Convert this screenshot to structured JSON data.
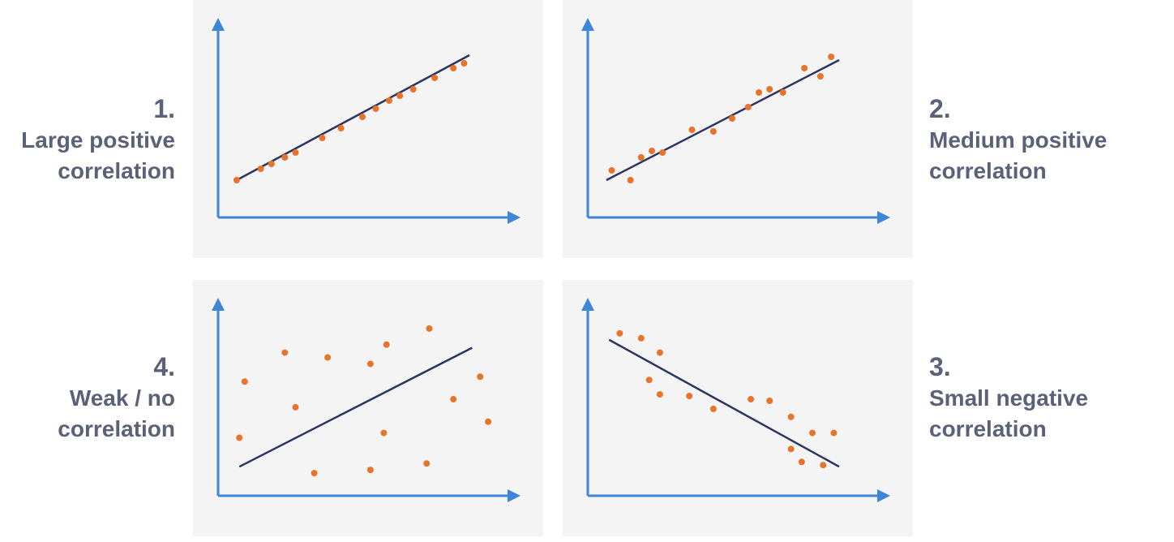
{
  "colors": {
    "axis": "#3d86d8",
    "trend_line": "#2b3561",
    "points": "#e8732a",
    "panel_bg": "#f4f4f5",
    "caption_text": "#5b6178"
  },
  "captions": {
    "p1": {
      "number": "1.",
      "line1": "Large positive",
      "line2": "correlation"
    },
    "p2": {
      "number": "2.",
      "line1": "Medium positive",
      "line2": "correlation"
    },
    "p4": {
      "number": "4.",
      "line1": "Weak / no",
      "line2": "correlation"
    },
    "p3": {
      "number": "3.",
      "line1": "Small negative",
      "line2": "correlation"
    }
  },
  "chart_data": [
    {
      "type": "scatter",
      "title": "",
      "xlabel": "",
      "ylabel": "",
      "xlim": [
        0,
        100
      ],
      "ylim": [
        0,
        100
      ],
      "grid": false,
      "trend_line": {
        "x": [
          3,
          90
        ],
        "y": [
          14,
          91
        ]
      },
      "points": [
        {
          "x": 3,
          "y": 14
        },
        {
          "x": 12,
          "y": 21
        },
        {
          "x": 16,
          "y": 24
        },
        {
          "x": 21,
          "y": 28
        },
        {
          "x": 25,
          "y": 31
        },
        {
          "x": 35,
          "y": 40
        },
        {
          "x": 42,
          "y": 46
        },
        {
          "x": 50,
          "y": 53
        },
        {
          "x": 55,
          "y": 58
        },
        {
          "x": 60,
          "y": 63
        },
        {
          "x": 64,
          "y": 66
        },
        {
          "x": 69,
          "y": 70
        },
        {
          "x": 77,
          "y": 77
        },
        {
          "x": 84,
          "y": 83
        },
        {
          "x": 88,
          "y": 86
        }
      ]
    },
    {
      "type": "scatter",
      "title": "",
      "xlabel": "",
      "ylabel": "",
      "xlim": [
        0,
        100
      ],
      "ylim": [
        0,
        100
      ],
      "grid": false,
      "trend_line": {
        "x": [
          3,
          90
        ],
        "y": [
          14,
          88
        ]
      },
      "points": [
        {
          "x": 5,
          "y": 20
        },
        {
          "x": 12,
          "y": 14
        },
        {
          "x": 16,
          "y": 28
        },
        {
          "x": 20,
          "y": 32
        },
        {
          "x": 24,
          "y": 31
        },
        {
          "x": 35,
          "y": 45
        },
        {
          "x": 43,
          "y": 44
        },
        {
          "x": 50,
          "y": 52
        },
        {
          "x": 56,
          "y": 59
        },
        {
          "x": 60,
          "y": 68
        },
        {
          "x": 64,
          "y": 70
        },
        {
          "x": 69,
          "y": 68
        },
        {
          "x": 77,
          "y": 83
        },
        {
          "x": 83,
          "y": 78
        },
        {
          "x": 87,
          "y": 90
        }
      ]
    },
    {
      "type": "scatter",
      "title": "",
      "xlabel": "",
      "ylabel": "",
      "xlim": [
        0,
        100
      ],
      "ylim": [
        0,
        100
      ],
      "grid": false,
      "trend_line": {
        "x": [
          4,
          91
        ],
        "y": [
          9,
          83
        ]
      },
      "points": [
        {
          "x": 4,
          "y": 27
        },
        {
          "x": 6,
          "y": 62
        },
        {
          "x": 21,
          "y": 80
        },
        {
          "x": 25,
          "y": 46
        },
        {
          "x": 32,
          "y": 5
        },
        {
          "x": 37,
          "y": 77
        },
        {
          "x": 53,
          "y": 73
        },
        {
          "x": 53,
          "y": 7
        },
        {
          "x": 58,
          "y": 30
        },
        {
          "x": 59,
          "y": 85
        },
        {
          "x": 74,
          "y": 11
        },
        {
          "x": 75,
          "y": 95
        },
        {
          "x": 84,
          "y": 51
        },
        {
          "x": 94,
          "y": 65
        },
        {
          "x": 97,
          "y": 37
        }
      ]
    },
    {
      "type": "scatter",
      "title": "",
      "xlabel": "",
      "ylabel": "",
      "xlim": [
        0,
        100
      ],
      "ylim": [
        0,
        100
      ],
      "grid": false,
      "trend_line": {
        "x": [
          4,
          90
        ],
        "y": [
          88,
          9
        ]
      },
      "points": [
        {
          "x": 8,
          "y": 92
        },
        {
          "x": 16,
          "y": 89
        },
        {
          "x": 23,
          "y": 80
        },
        {
          "x": 19,
          "y": 63
        },
        {
          "x": 23,
          "y": 54
        },
        {
          "x": 34,
          "y": 53
        },
        {
          "x": 43,
          "y": 45
        },
        {
          "x": 57,
          "y": 51
        },
        {
          "x": 64,
          "y": 50
        },
        {
          "x": 72,
          "y": 40
        },
        {
          "x": 72,
          "y": 20
        },
        {
          "x": 76,
          "y": 12
        },
        {
          "x": 80,
          "y": 30
        },
        {
          "x": 84,
          "y": 10
        },
        {
          "x": 88,
          "y": 30
        }
      ]
    }
  ]
}
